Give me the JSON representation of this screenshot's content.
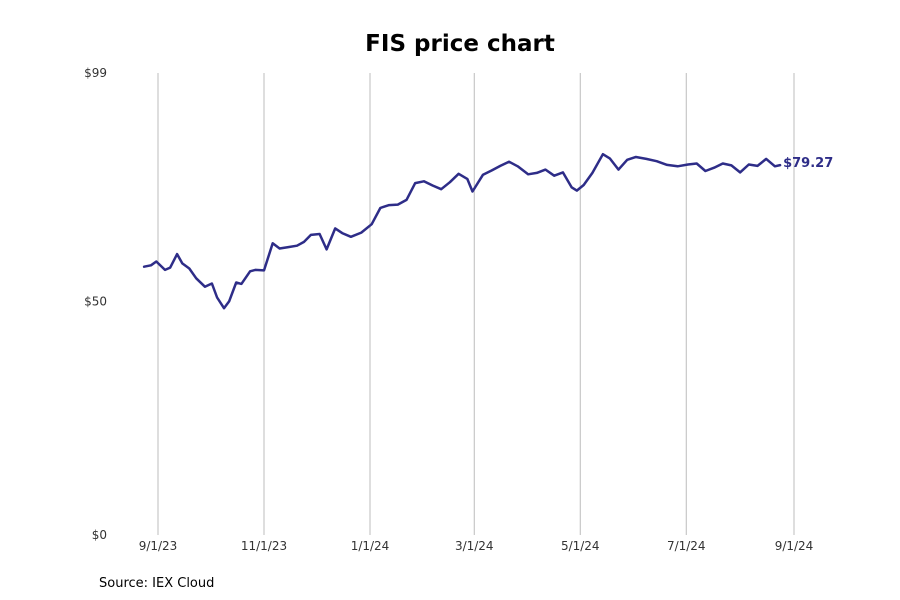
{
  "colors": {
    "line": "#2e2d88",
    "grid": "#bdbdbd",
    "text": "#333333"
  },
  "chart_data": {
    "type": "line",
    "title": "FIS price chart",
    "xlabel": "",
    "ylabel": "",
    "ylim": [
      0,
      99
    ],
    "y_ticks": [
      {
        "value": 0,
        "label": "$0"
      },
      {
        "value": 50,
        "label": "$50"
      },
      {
        "value": 99,
        "label": "$99"
      }
    ],
    "x_ticks": [
      {
        "date": "2023-09-01",
        "label": "9/1/23"
      },
      {
        "date": "2023-11-01",
        "label": "11/1/23"
      },
      {
        "date": "2024-01-01",
        "label": "1/1/24"
      },
      {
        "date": "2024-03-01",
        "label": "3/1/24"
      },
      {
        "date": "2024-05-01",
        "label": "5/1/24"
      },
      {
        "date": "2024-07-01",
        "label": "7/1/24"
      },
      {
        "date": "2024-09-01",
        "label": "9/1/24"
      }
    ],
    "grid": "vertical",
    "last_value_label": "$79.27",
    "source": "Source: IEX Cloud",
    "series": [
      {
        "name": "FIS",
        "x": [
          "2023-08-24",
          "2023-08-28",
          "2023-08-31",
          "2023-09-05",
          "2023-09-08",
          "2023-09-12",
          "2023-09-15",
          "2023-09-19",
          "2023-09-23",
          "2023-09-28",
          "2023-10-02",
          "2023-10-05",
          "2023-10-09",
          "2023-10-12",
          "2023-10-16",
          "2023-10-19",
          "2023-10-24",
          "2023-10-27",
          "2023-11-01",
          "2023-11-06",
          "2023-11-10",
          "2023-11-15",
          "2023-11-20",
          "2023-11-24",
          "2023-11-28",
          "2023-12-03",
          "2023-12-07",
          "2023-12-12",
          "2023-12-16",
          "2023-12-21",
          "2023-12-27",
          "2024-01-02",
          "2024-01-07",
          "2024-01-12",
          "2024-01-17",
          "2024-01-22",
          "2024-01-27",
          "2024-02-01",
          "2024-02-06",
          "2024-02-11",
          "2024-02-16",
          "2024-02-21",
          "2024-02-26",
          "2024-02-29",
          "2024-03-06",
          "2024-03-11",
          "2024-03-16",
          "2024-03-21",
          "2024-03-26",
          "2024-04-01",
          "2024-04-06",
          "2024-04-11",
          "2024-04-16",
          "2024-04-21",
          "2024-04-26",
          "2024-04-29",
          "2024-05-03",
          "2024-05-08",
          "2024-05-14",
          "2024-05-18",
          "2024-05-23",
          "2024-05-28",
          "2024-06-02",
          "2024-06-08",
          "2024-06-14",
          "2024-06-20",
          "2024-06-26",
          "2024-07-02",
          "2024-07-07",
          "2024-07-12",
          "2024-07-17",
          "2024-07-22",
          "2024-07-27",
          "2024-08-01",
          "2024-08-06",
          "2024-08-11",
          "2024-08-16",
          "2024-08-21",
          "2024-08-24"
        ],
        "values": [
          57.5,
          57.8,
          58.6,
          56.8,
          57.3,
          60.2,
          58.2,
          57.1,
          55.0,
          53.2,
          53.9,
          50.9,
          48.6,
          50.1,
          54.1,
          53.8,
          56.5,
          56.8,
          56.7,
          62.5,
          61.4,
          61.7,
          62.0,
          62.8,
          64.3,
          64.5,
          61.2,
          65.7,
          64.7,
          63.9,
          64.8,
          66.6,
          70.1,
          70.7,
          70.8,
          71.8,
          75.4,
          75.8,
          74.9,
          74.1,
          75.6,
          77.4,
          76.3,
          73.6,
          77.2,
          78.1,
          79.1,
          80.0,
          79.0,
          77.3,
          77.6,
          78.3,
          77.0,
          77.7,
          74.5,
          73.8,
          75.0,
          77.6,
          81.6,
          80.7,
          78.3,
          80.4,
          81.0,
          80.6,
          80.1,
          79.3,
          79.0,
          79.4,
          79.6,
          78.0,
          78.7,
          79.6,
          79.2,
          77.7,
          79.4,
          79.1,
          80.6,
          79.0,
          79.27
        ]
      }
    ]
  }
}
